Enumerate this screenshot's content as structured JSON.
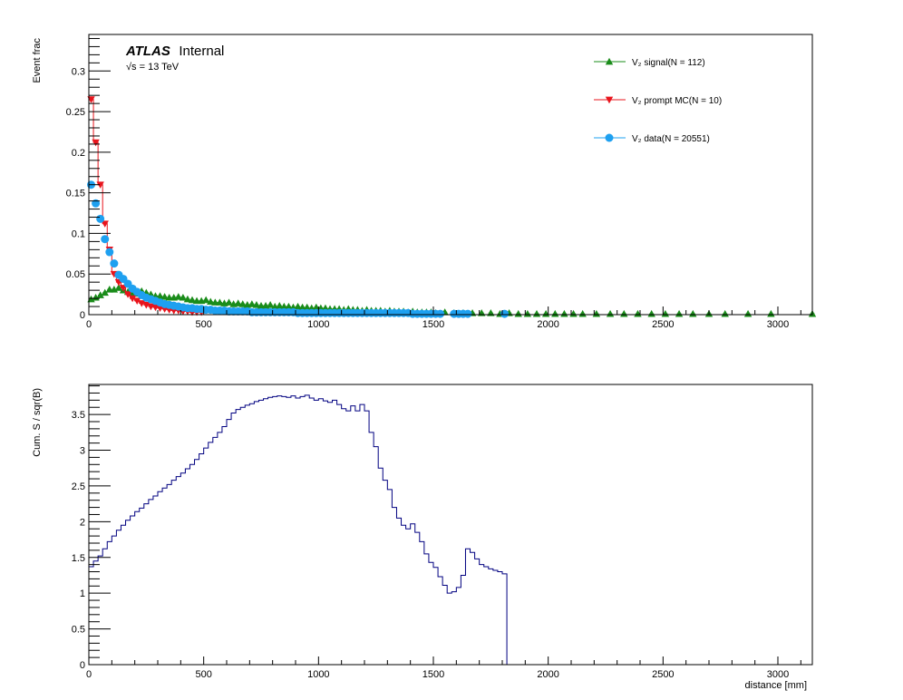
{
  "colors": {
    "signal": "#1a8c1a",
    "prompt": "#e8141c",
    "data": "#1ea0f0",
    "significance": "#000080",
    "frame": "#000000"
  },
  "labels": {
    "experiment": "ATLAS",
    "status": "Internal",
    "energy": "√s = 13 TeV"
  },
  "chart_data": [
    {
      "type": "scatter",
      "ylabel": "Event frac",
      "xlim": [
        0,
        3150
      ],
      "ylim": [
        0,
        0.345
      ],
      "x_ticks": [
        0,
        500,
        1000,
        1500,
        2000,
        2500,
        3000
      ],
      "x_tick_labels": [
        "0",
        "500",
        "1000",
        "1500",
        "2000",
        "2500",
        "3000"
      ],
      "y_ticks": [
        0,
        0.05,
        0.1,
        0.15,
        0.2,
        0.25,
        0.3
      ],
      "y_tick_labels": [
        "0",
        "0.05",
        "0.1",
        "0.15",
        "0.2",
        "0.25",
        "0.3"
      ],
      "legend_position": "top-right",
      "bin_width": 20,
      "series": [
        {
          "name": "V₂ signal(N = 112)",
          "marker": "triangle-up",
          "color_key": "signal",
          "x": [
            10,
            30,
            50,
            70,
            90,
            110,
            130,
            150,
            170,
            190,
            210,
            230,
            250,
            270,
            290,
            310,
            330,
            350,
            370,
            390,
            410,
            430,
            450,
            470,
            490,
            510,
            530,
            550,
            570,
            590,
            610,
            630,
            650,
            670,
            690,
            710,
            730,
            750,
            770,
            790,
            810,
            830,
            850,
            870,
            890,
            910,
            930,
            950,
            970,
            990,
            1010,
            1030,
            1050,
            1070,
            1090,
            1110,
            1130,
            1150,
            1170,
            1190,
            1210,
            1230,
            1250,
            1270,
            1290,
            1310,
            1330,
            1350,
            1370,
            1390,
            1410,
            1430,
            1450,
            1470,
            1490,
            1510,
            1550,
            1590,
            1630,
            1670,
            1710,
            1750,
            1790,
            1830,
            1870,
            1910,
            1950,
            1990,
            2030,
            2070,
            2110,
            2150,
            2210,
            2270,
            2330,
            2390,
            2450,
            2510,
            2570,
            2630,
            2700,
            2770,
            2870,
            2970,
            3150
          ],
          "y": [
            0.019,
            0.021,
            0.024,
            0.027,
            0.031,
            0.031,
            0.033,
            0.03,
            0.028,
            0.027,
            0.026,
            0.029,
            0.027,
            0.025,
            0.023,
            0.023,
            0.022,
            0.021,
            0.021,
            0.022,
            0.021,
            0.019,
            0.018,
            0.017,
            0.017,
            0.018,
            0.016,
            0.015,
            0.015,
            0.014,
            0.015,
            0.013,
            0.014,
            0.013,
            0.012,
            0.013,
            0.012,
            0.011,
            0.011,
            0.012,
            0.01,
            0.011,
            0.01,
            0.01,
            0.009,
            0.01,
            0.009,
            0.009,
            0.008,
            0.009,
            0.008,
            0.008,
            0.007,
            0.007,
            0.007,
            0.006,
            0.007,
            0.006,
            0.006,
            0.005,
            0.006,
            0.005,
            0.005,
            0.005,
            0.004,
            0.005,
            0.004,
            0.004,
            0.004,
            0.003,
            0.004,
            0.003,
            0.003,
            0.003,
            0.003,
            0.002,
            0.003,
            0.002,
            0.002,
            0.002,
            0.002,
            0.002,
            0.001,
            0.002,
            0.001,
            0.001,
            0.001,
            0.001,
            0.001,
            0.001,
            0.001,
            0.001,
            0.001,
            0.001,
            0.001,
            0.001,
            0.001,
            0.001,
            0.001,
            0.001,
            0.001,
            0.001,
            0.001,
            0.001,
            0.001
          ]
        },
        {
          "name": "V₂ prompt MC(N = 10)",
          "marker": "triangle-down",
          "color_key": "prompt",
          "x": [
            10,
            30,
            50,
            70,
            90,
            110,
            130,
            150,
            170,
            190,
            210,
            230,
            250,
            270,
            290,
            310,
            330,
            350,
            370,
            390,
            410,
            430,
            450,
            470,
            490
          ],
          "y": [
            0.265,
            0.212,
            0.16,
            0.112,
            0.08,
            0.05,
            0.04,
            0.033,
            0.025,
            0.02,
            0.017,
            0.014,
            0.012,
            0.01,
            0.009,
            0.008,
            0.007,
            0.006,
            0.005,
            0.005,
            0.004,
            0.004,
            0.003,
            0.003,
            0.003
          ]
        },
        {
          "name": "V₂ data(N = 20551)",
          "marker": "circle",
          "color_key": "data",
          "x": [
            10,
            30,
            50,
            70,
            90,
            110,
            130,
            150,
            170,
            190,
            210,
            230,
            250,
            270,
            290,
            310,
            330,
            350,
            370,
            390,
            410,
            430,
            450,
            470,
            490,
            510,
            530,
            550,
            570,
            590,
            610,
            630,
            650,
            670,
            690,
            710,
            730,
            750,
            770,
            790,
            810,
            830,
            850,
            870,
            890,
            910,
            930,
            950,
            970,
            990,
            1010,
            1030,
            1050,
            1070,
            1090,
            1110,
            1130,
            1150,
            1170,
            1190,
            1210,
            1230,
            1250,
            1270,
            1290,
            1310,
            1330,
            1350,
            1370,
            1390,
            1410,
            1430,
            1450,
            1470,
            1490,
            1510,
            1530,
            1590,
            1610,
            1630,
            1650,
            1810
          ],
          "y": [
            0.16,
            0.137,
            0.118,
            0.093,
            0.077,
            0.063,
            0.049,
            0.044,
            0.038,
            0.032,
            0.028,
            0.024,
            0.021,
            0.019,
            0.017,
            0.015,
            0.013,
            0.012,
            0.011,
            0.01,
            0.009,
            0.008,
            0.008,
            0.007,
            0.007,
            0.006,
            0.006,
            0.005,
            0.005,
            0.005,
            0.004,
            0.004,
            0.004,
            0.004,
            0.004,
            0.003,
            0.003,
            0.003,
            0.003,
            0.003,
            0.003,
            0.003,
            0.003,
            0.003,
            0.003,
            0.002,
            0.002,
            0.002,
            0.002,
            0.002,
            0.002,
            0.002,
            0.002,
            0.002,
            0.002,
            0.002,
            0.002,
            0.002,
            0.002,
            0.002,
            0.002,
            0.002,
            0.002,
            0.002,
            0.002,
            0.002,
            0.002,
            0.002,
            0.002,
            0.002,
            0.001,
            0.001,
            0.001,
            0.001,
            0.001,
            0.001,
            0.001,
            0.001,
            0.001,
            0.001,
            0.001,
            0.001
          ]
        }
      ]
    },
    {
      "type": "line",
      "ylabel": "Cum. S / sqr(B)",
      "xlabel": "distance [mm]",
      "xlim": [
        0,
        3150
      ],
      "ylim": [
        0,
        3.92
      ],
      "x_ticks": [
        0,
        500,
        1000,
        1500,
        2000,
        2500,
        3000
      ],
      "x_tick_labels": [
        "0",
        "500",
        "1000",
        "1500",
        "2000",
        "2500",
        "3000"
      ],
      "y_ticks": [
        0,
        0.5,
        1,
        1.5,
        2,
        2.5,
        3,
        3.5
      ],
      "y_tick_labels": [
        "0",
        "0.5",
        "1",
        "1.5",
        "2",
        "2.5",
        "3",
        "3.5"
      ],
      "bin_width": 20,
      "series": [
        {
          "name": "",
          "color_key": "significance",
          "x": [
            0,
            20,
            40,
            60,
            80,
            100,
            120,
            140,
            160,
            180,
            200,
            220,
            240,
            260,
            280,
            300,
            320,
            340,
            360,
            380,
            400,
            420,
            440,
            460,
            480,
            500,
            520,
            540,
            560,
            580,
            600,
            620,
            640,
            660,
            680,
            700,
            720,
            740,
            760,
            780,
            800,
            820,
            840,
            860,
            880,
            900,
            920,
            940,
            960,
            980,
            1000,
            1020,
            1040,
            1060,
            1080,
            1100,
            1120,
            1140,
            1160,
            1180,
            1200,
            1220,
            1240,
            1260,
            1280,
            1300,
            1320,
            1340,
            1360,
            1380,
            1400,
            1420,
            1440,
            1460,
            1480,
            1500,
            1520,
            1540,
            1560,
            1580,
            1600,
            1620,
            1640,
            1660,
            1680,
            1700,
            1720,
            1740,
            1760,
            1780,
            1800,
            1820
          ],
          "y": [
            1.37,
            1.45,
            1.52,
            1.62,
            1.72,
            1.8,
            1.88,
            1.95,
            2.02,
            2.08,
            2.14,
            2.19,
            2.25,
            2.31,
            2.36,
            2.42,
            2.47,
            2.52,
            2.58,
            2.63,
            2.68,
            2.74,
            2.8,
            2.87,
            2.95,
            3.03,
            3.11,
            3.18,
            3.25,
            3.33,
            3.43,
            3.52,
            3.57,
            3.6,
            3.63,
            3.65,
            3.68,
            3.7,
            3.72,
            3.74,
            3.75,
            3.76,
            3.75,
            3.74,
            3.76,
            3.73,
            3.75,
            3.77,
            3.73,
            3.7,
            3.72,
            3.69,
            3.67,
            3.7,
            3.64,
            3.58,
            3.55,
            3.62,
            3.55,
            3.64,
            3.55,
            3.25,
            3.05,
            2.75,
            2.58,
            2.45,
            2.2,
            2.05,
            1.95,
            1.9,
            1.97,
            1.85,
            1.72,
            1.55,
            1.43,
            1.36,
            1.23,
            1.11,
            1.0,
            1.02,
            1.08,
            1.25,
            1.62,
            1.57,
            1.48,
            1.4,
            1.37,
            1.34,
            1.32,
            1.3,
            1.27,
            0.0
          ]
        }
      ]
    }
  ]
}
